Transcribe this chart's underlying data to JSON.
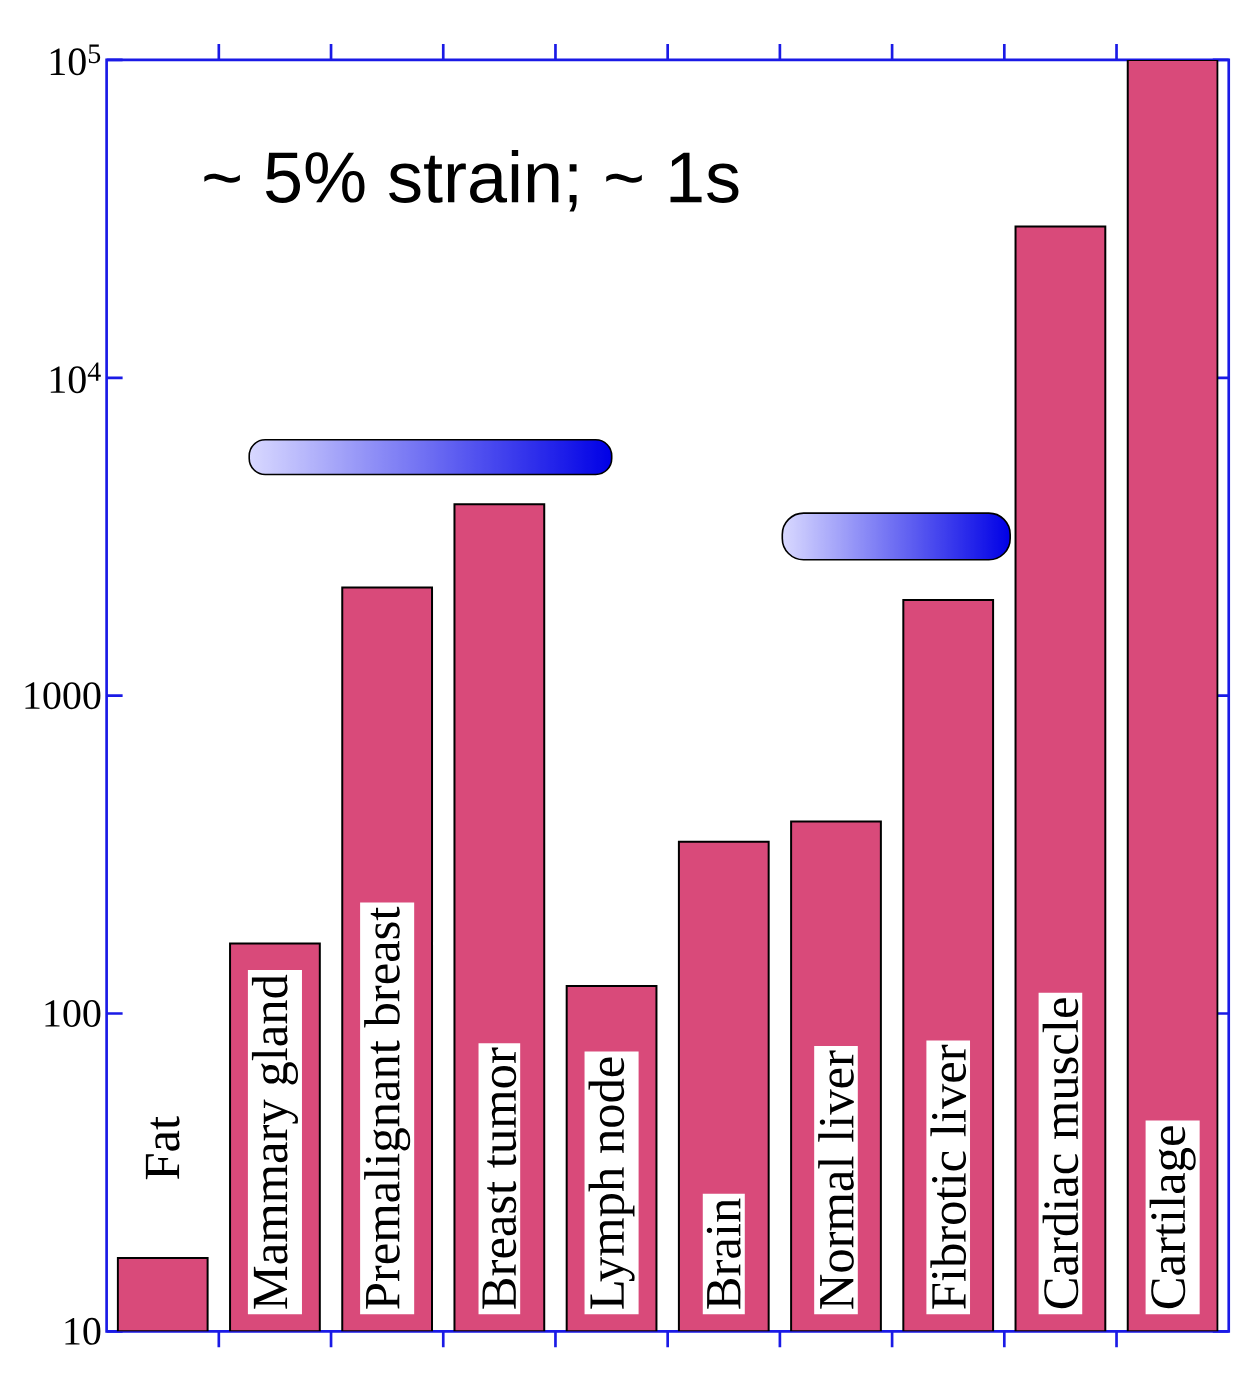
{
  "chart_data": {
    "type": "bar",
    "categories": [
      "Fat",
      "Mammary gland",
      "Premalignant breast",
      "Breast tumor",
      "Lymph node",
      "Brain",
      "Normal liver",
      "Fibrotic liver",
      "Cardiac muscle",
      "Cartilage"
    ],
    "values": [
      17,
      166,
      2190,
      4000,
      122,
      347,
      402,
      2000,
      29900,
      100000
    ],
    "color": "#d94a7a",
    "log": "y",
    "ylim": [
      10,
      100000
    ],
    "yticks": [
      10,
      100,
      1000,
      {
        "value": 10000,
        "label": "10$^{4}$"
      },
      {
        "value": 100000,
        "label": "10$^{5}$"
      }
    ],
    "tick_labels": "y",
    "annotations": [
      "~ 5% strain; ~ 1s"
    ]
  }
}
